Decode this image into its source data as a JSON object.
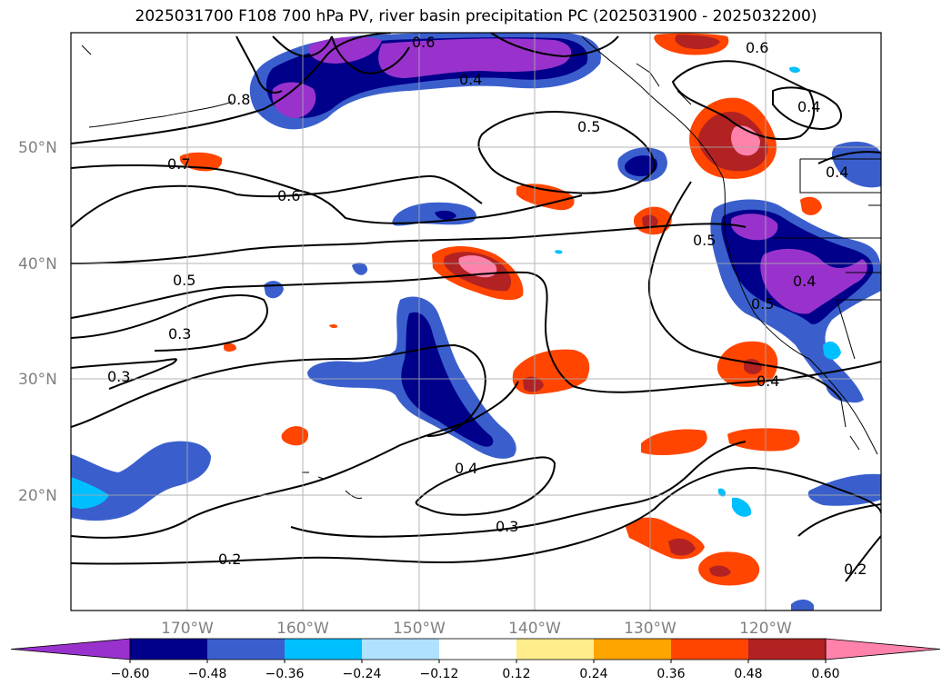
{
  "title": "2025031700 F108 700 hPa PV, river basin precipitation PC (2025031900 - 2025032200)",
  "map": {
    "lon_ticks": [
      "170°W",
      "160°W",
      "150°W",
      "140°W",
      "130°W",
      "120°W"
    ],
    "lat_ticks": [
      "50°N",
      "40°N",
      "30°N",
      "20°N"
    ],
    "contour_labels": [
      "0.7",
      "0.6",
      "0.5",
      "0.5",
      "0.6",
      "0.4",
      "0.4",
      "0.3",
      "0.3",
      "0.4",
      "0.3",
      "0.2",
      "0.5",
      "0.4",
      "0.4",
      "0.2",
      "0.5",
      "0.6",
      "0.8",
      "0.4"
    ]
  },
  "colorbar": {
    "ticks": [
      "−0.60",
      "−0.48",
      "−0.36",
      "−0.24",
      "−0.12",
      "0.12",
      "0.24",
      "0.36",
      "0.48",
      "0.60"
    ],
    "colors": [
      "#9932CC",
      "#00008B",
      "#3A5FCD",
      "#00BFFF",
      "#B0E2FF",
      "#FFFFFF",
      "#FFEC8B",
      "#FFA500",
      "#FF4500",
      "#B22222",
      "#FF82AB"
    ]
  }
}
